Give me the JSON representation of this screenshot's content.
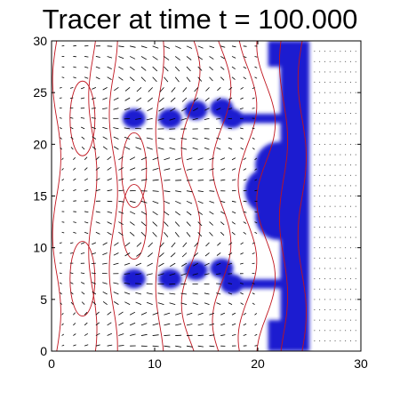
{
  "chart_data": {
    "type": "scatter",
    "title": "Tracer at time t = 100.000",
    "xlabel": "",
    "ylabel": "",
    "xlim": [
      0,
      30
    ],
    "ylim": [
      0,
      30
    ],
    "xticks": [
      0,
      10,
      20,
      30
    ],
    "yticks": [
      0,
      5,
      10,
      15,
      20,
      25,
      30
    ],
    "grid": false,
    "colors": {
      "tracer": "#1a1fd0",
      "contour": "#c0141e",
      "vector": "#000000",
      "background_dots": "#333333"
    },
    "tracer_wall": {
      "x": [
        21,
        25
      ],
      "y": [
        0,
        30
      ]
    },
    "tracer_blobs": [
      {
        "x": 8,
        "y": 22.5
      },
      {
        "x": 11.5,
        "y": 22.5
      },
      {
        "x": 14,
        "y": 23.3
      },
      {
        "x": 16.5,
        "y": 23.5
      },
      {
        "x": 17.5,
        "y": 22.5
      },
      {
        "x": 8,
        "y": 7
      },
      {
        "x": 11.5,
        "y": 7
      },
      {
        "x": 14,
        "y": 7.8
      },
      {
        "x": 16.5,
        "y": 8
      },
      {
        "x": 17.5,
        "y": 6.5
      },
      {
        "x": 21,
        "y": 15.5
      },
      {
        "x": 22,
        "y": 18
      },
      {
        "x": 22,
        "y": 13
      }
    ],
    "contour_x_positions": [
      0.5,
      4,
      6,
      10.5,
      13.5,
      16.5,
      19,
      20.8,
      22.5,
      24.3
    ]
  }
}
